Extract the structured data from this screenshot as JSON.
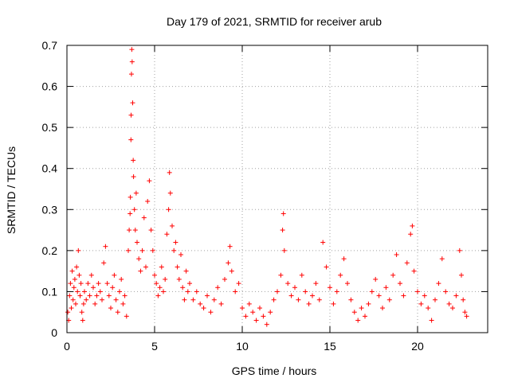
{
  "chart_data": {
    "type": "scatter",
    "title": "Day 179 of 2021, SRMTID for receiver arub",
    "xlabel": "GPS time / hours",
    "ylabel": "SRMTID / TECUs",
    "xlim": [
      0,
      24
    ],
    "ylim": [
      0,
      0.7
    ],
    "xticks": [
      0,
      5,
      10,
      15,
      20
    ],
    "xtick_labels": [
      "0",
      "5",
      "10",
      "15",
      "20"
    ],
    "yticks": [
      0,
      0.1,
      0.2,
      0.3,
      0.4,
      0.5,
      0.6,
      0.7
    ],
    "ytick_labels": [
      "0",
      "0.1",
      "0.2",
      "0.3",
      "0.4",
      "0.5",
      "0.6",
      "0.7"
    ],
    "grid": true,
    "marker": "+",
    "series": [
      {
        "name": "SRMTID",
        "color": "#ff0000",
        "points": [
          [
            0.05,
            0.05
          ],
          [
            0.1,
            0.03
          ],
          [
            0.15,
            0.09
          ],
          [
            0.2,
            0.12
          ],
          [
            0.25,
            0.06
          ],
          [
            0.3,
            0.15
          ],
          [
            0.35,
            0.08
          ],
          [
            0.4,
            0.11
          ],
          [
            0.45,
            0.13
          ],
          [
            0.5,
            0.07
          ],
          [
            0.55,
            0.16
          ],
          [
            0.6,
            0.1
          ],
          [
            0.65,
            0.2
          ],
          [
            0.7,
            0.14
          ],
          [
            0.75,
            0.09
          ],
          [
            0.8,
            0.12
          ],
          [
            0.85,
            0.05
          ],
          [
            0.9,
            0.03
          ],
          [
            0.95,
            0.07
          ],
          [
            1.0,
            0.1
          ],
          [
            1.1,
            0.08
          ],
          [
            1.2,
            0.12
          ],
          [
            1.3,
            0.09
          ],
          [
            1.4,
            0.14
          ],
          [
            1.5,
            0.11
          ],
          [
            1.6,
            0.07
          ],
          [
            1.7,
            0.09
          ],
          [
            1.8,
            0.12
          ],
          [
            1.9,
            0.1
          ],
          [
            2.0,
            0.08
          ],
          [
            2.1,
            0.17
          ],
          [
            2.2,
            0.21
          ],
          [
            2.3,
            0.12
          ],
          [
            2.4,
            0.09
          ],
          [
            2.5,
            0.06
          ],
          [
            2.6,
            0.11
          ],
          [
            2.7,
            0.14
          ],
          [
            2.8,
            0.08
          ],
          [
            2.9,
            0.05
          ],
          [
            3.0,
            0.1
          ],
          [
            3.1,
            0.13
          ],
          [
            3.2,
            0.07
          ],
          [
            3.3,
            0.09
          ],
          [
            3.4,
            0.04
          ],
          [
            3.5,
            0.2
          ],
          [
            3.55,
            0.25
          ],
          [
            3.6,
            0.29
          ],
          [
            3.62,
            0.33
          ],
          [
            3.65,
            0.47
          ],
          [
            3.66,
            0.53
          ],
          [
            3.68,
            0.63
          ],
          [
            3.7,
            0.69
          ],
          [
            3.72,
            0.66
          ],
          [
            3.75,
            0.56
          ],
          [
            3.78,
            0.42
          ],
          [
            3.8,
            0.38
          ],
          [
            3.85,
            0.3
          ],
          [
            3.9,
            0.25
          ],
          [
            3.95,
            0.34
          ],
          [
            4.0,
            0.22
          ],
          [
            4.1,
            0.18
          ],
          [
            4.2,
            0.15
          ],
          [
            4.3,
            0.2
          ],
          [
            4.4,
            0.28
          ],
          [
            4.5,
            0.16
          ],
          [
            4.6,
            0.32
          ],
          [
            4.7,
            0.37
          ],
          [
            4.8,
            0.25
          ],
          [
            4.9,
            0.2
          ],
          [
            5.0,
            0.14
          ],
          [
            5.1,
            0.12
          ],
          [
            5.2,
            0.09
          ],
          [
            5.3,
            0.11
          ],
          [
            5.4,
            0.16
          ],
          [
            5.5,
            0.1
          ],
          [
            5.6,
            0.13
          ],
          [
            5.7,
            0.24
          ],
          [
            5.8,
            0.3
          ],
          [
            5.85,
            0.39
          ],
          [
            5.9,
            0.34
          ],
          [
            6.0,
            0.26
          ],
          [
            6.1,
            0.2
          ],
          [
            6.2,
            0.22
          ],
          [
            6.3,
            0.16
          ],
          [
            6.4,
            0.13
          ],
          [
            6.5,
            0.19
          ],
          [
            6.6,
            0.11
          ],
          [
            6.7,
            0.08
          ],
          [
            6.8,
            0.15
          ],
          [
            6.9,
            0.1
          ],
          [
            7.0,
            0.12
          ],
          [
            7.2,
            0.08
          ],
          [
            7.4,
            0.1
          ],
          [
            7.6,
            0.07
          ],
          [
            7.8,
            0.06
          ],
          [
            8.0,
            0.09
          ],
          [
            8.2,
            0.05
          ],
          [
            8.4,
            0.08
          ],
          [
            8.6,
            0.11
          ],
          [
            8.8,
            0.07
          ],
          [
            9.0,
            0.13
          ],
          [
            9.2,
            0.17
          ],
          [
            9.3,
            0.21
          ],
          [
            9.4,
            0.15
          ],
          [
            9.6,
            0.1
          ],
          [
            9.8,
            0.12
          ],
          [
            10.0,
            0.06
          ],
          [
            10.2,
            0.04
          ],
          [
            10.4,
            0.07
          ],
          [
            10.6,
            0.05
          ],
          [
            10.8,
            0.03
          ],
          [
            11.0,
            0.06
          ],
          [
            11.2,
            0.04
          ],
          [
            11.4,
            0.02
          ],
          [
            11.6,
            0.05
          ],
          [
            11.8,
            0.08
          ],
          [
            12.0,
            0.1
          ],
          [
            12.2,
            0.14
          ],
          [
            12.3,
            0.25
          ],
          [
            12.35,
            0.29
          ],
          [
            12.4,
            0.2
          ],
          [
            12.6,
            0.12
          ],
          [
            12.8,
            0.09
          ],
          [
            13.0,
            0.11
          ],
          [
            13.2,
            0.08
          ],
          [
            13.4,
            0.14
          ],
          [
            13.6,
            0.1
          ],
          [
            13.8,
            0.07
          ],
          [
            14.0,
            0.09
          ],
          [
            14.2,
            0.12
          ],
          [
            14.4,
            0.08
          ],
          [
            14.6,
            0.22
          ],
          [
            14.8,
            0.16
          ],
          [
            15.0,
            0.11
          ],
          [
            15.2,
            0.07
          ],
          [
            15.4,
            0.1
          ],
          [
            15.6,
            0.14
          ],
          [
            15.8,
            0.18
          ],
          [
            16.0,
            0.12
          ],
          [
            16.2,
            0.08
          ],
          [
            16.4,
            0.05
          ],
          [
            16.6,
            0.03
          ],
          [
            16.8,
            0.06
          ],
          [
            17.0,
            0.04
          ],
          [
            17.2,
            0.07
          ],
          [
            17.4,
            0.1
          ],
          [
            17.6,
            0.13
          ],
          [
            17.8,
            0.09
          ],
          [
            18.0,
            0.06
          ],
          [
            18.2,
            0.11
          ],
          [
            18.4,
            0.08
          ],
          [
            18.6,
            0.14
          ],
          [
            18.8,
            0.19
          ],
          [
            19.0,
            0.12
          ],
          [
            19.2,
            0.09
          ],
          [
            19.4,
            0.17
          ],
          [
            19.6,
            0.24
          ],
          [
            19.7,
            0.26
          ],
          [
            19.8,
            0.15
          ],
          [
            20.0,
            0.1
          ],
          [
            20.2,
            0.07
          ],
          [
            20.4,
            0.09
          ],
          [
            20.6,
            0.06
          ],
          [
            20.8,
            0.03
          ],
          [
            21.0,
            0.08
          ],
          [
            21.2,
            0.12
          ],
          [
            21.4,
            0.18
          ],
          [
            21.6,
            0.1
          ],
          [
            21.8,
            0.07
          ],
          [
            22.0,
            0.06
          ],
          [
            22.2,
            0.09
          ],
          [
            22.4,
            0.2
          ],
          [
            22.5,
            0.14
          ],
          [
            22.6,
            0.08
          ],
          [
            22.7,
            0.05
          ],
          [
            22.8,
            0.04
          ]
        ]
      }
    ]
  }
}
